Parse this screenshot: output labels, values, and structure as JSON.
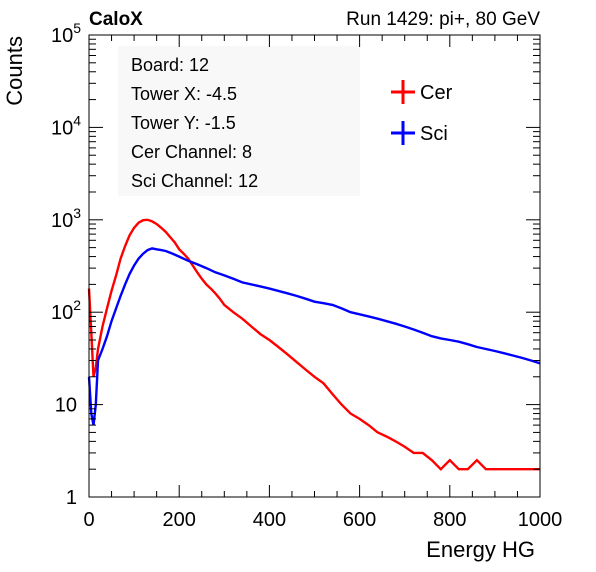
{
  "header": {
    "experiment": "CaloX",
    "run_info": "Run 1429: pi+, 80 GeV"
  },
  "info_box": {
    "lines": [
      "Board: 12",
      "Tower X: -4.5",
      "Tower Y: -1.5",
      "Cer Channel: 8",
      "Sci Channel: 12"
    ]
  },
  "colors": {
    "cer": "#ff0000",
    "sci": "#0000ff",
    "info_box_bg": "#f8f8f8"
  },
  "chart_data": {
    "type": "line",
    "xlabel": "Energy HG",
    "ylabel": "Counts",
    "xlim": [
      0,
      1000
    ],
    "ylim": [
      1,
      100000
    ],
    "yscale": "log",
    "grid": false,
    "legend_position": "top-right",
    "x_ticks": [
      "0",
      "200",
      "400",
      "600",
      "800",
      "1000"
    ],
    "y_ticks": [
      {
        "base": "1",
        "exp": ""
      },
      {
        "base": "10",
        "exp": ""
      },
      {
        "base": "10",
        "exp": "2"
      },
      {
        "base": "10",
        "exp": "3"
      },
      {
        "base": "10",
        "exp": "4"
      },
      {
        "base": "10",
        "exp": "5"
      }
    ],
    "series": [
      {
        "name": "Cer",
        "color": "#ff0000",
        "points": [
          [
            0,
            180
          ],
          [
            5,
            60
          ],
          [
            10,
            20
          ],
          [
            15,
            25
          ],
          [
            20,
            40
          ],
          [
            30,
            70
          ],
          [
            40,
            110
          ],
          [
            50,
            170
          ],
          [
            60,
            250
          ],
          [
            70,
            380
          ],
          [
            80,
            520
          ],
          [
            90,
            680
          ],
          [
            100,
            820
          ],
          [
            110,
            930
          ],
          [
            120,
            990
          ],
          [
            130,
            1000
          ],
          [
            140,
            960
          ],
          [
            150,
            900
          ],
          [
            160,
            820
          ],
          [
            170,
            740
          ],
          [
            180,
            650
          ],
          [
            190,
            570
          ],
          [
            200,
            480
          ],
          [
            210,
            430
          ],
          [
            220,
            380
          ],
          [
            230,
            320
          ],
          [
            240,
            270
          ],
          [
            250,
            230
          ],
          [
            260,
            200
          ],
          [
            270,
            180
          ],
          [
            280,
            160
          ],
          [
            290,
            140
          ],
          [
            300,
            120
          ],
          [
            320,
            100
          ],
          [
            340,
            85
          ],
          [
            360,
            70
          ],
          [
            380,
            58
          ],
          [
            400,
            50
          ],
          [
            420,
            42
          ],
          [
            440,
            35
          ],
          [
            460,
            29
          ],
          [
            480,
            24
          ],
          [
            500,
            20
          ],
          [
            520,
            17
          ],
          [
            540,
            13
          ],
          [
            560,
            10
          ],
          [
            580,
            8
          ],
          [
            600,
            7
          ],
          [
            620,
            6
          ],
          [
            640,
            5
          ],
          [
            660,
            4.5
          ],
          [
            680,
            4
          ],
          [
            700,
            3.5
          ],
          [
            720,
            3
          ],
          [
            740,
            3
          ],
          [
            760,
            2.5
          ],
          [
            780,
            2
          ],
          [
            800,
            2.5
          ],
          [
            820,
            2
          ],
          [
            840,
            2
          ],
          [
            860,
            2.5
          ],
          [
            880,
            2
          ],
          [
            900,
            2
          ],
          [
            920,
            2
          ],
          [
            940,
            2
          ],
          [
            960,
            2
          ],
          [
            980,
            2
          ],
          [
            1000,
            2
          ]
        ]
      },
      {
        "name": "Sci",
        "color": "#0000ff",
        "points": [
          [
            0,
            20
          ],
          [
            5,
            8
          ],
          [
            10,
            6
          ],
          [
            15,
            10
          ],
          [
            20,
            30
          ],
          [
            30,
            40
          ],
          [
            40,
            55
          ],
          [
            50,
            80
          ],
          [
            60,
            110
          ],
          [
            70,
            150
          ],
          [
            80,
            200
          ],
          [
            90,
            260
          ],
          [
            100,
            320
          ],
          [
            110,
            380
          ],
          [
            120,
            430
          ],
          [
            130,
            470
          ],
          [
            140,
            490
          ],
          [
            150,
            480
          ],
          [
            160,
            470
          ],
          [
            170,
            460
          ],
          [
            180,
            440
          ],
          [
            190,
            420
          ],
          [
            200,
            400
          ],
          [
            220,
            360
          ],
          [
            240,
            330
          ],
          [
            260,
            300
          ],
          [
            280,
            270
          ],
          [
            300,
            250
          ],
          [
            320,
            230
          ],
          [
            340,
            210
          ],
          [
            360,
            200
          ],
          [
            380,
            190
          ],
          [
            400,
            180
          ],
          [
            420,
            170
          ],
          [
            440,
            160
          ],
          [
            460,
            150
          ],
          [
            480,
            140
          ],
          [
            500,
            130
          ],
          [
            520,
            125
          ],
          [
            540,
            120
          ],
          [
            560,
            110
          ],
          [
            580,
            100
          ],
          [
            600,
            95
          ],
          [
            620,
            90
          ],
          [
            640,
            85
          ],
          [
            660,
            80
          ],
          [
            680,
            75
          ],
          [
            700,
            70
          ],
          [
            720,
            65
          ],
          [
            740,
            60
          ],
          [
            760,
            55
          ],
          [
            780,
            52
          ],
          [
            800,
            50
          ],
          [
            820,
            48
          ],
          [
            840,
            45
          ],
          [
            860,
            42
          ],
          [
            880,
            40
          ],
          [
            900,
            38
          ],
          [
            920,
            36
          ],
          [
            940,
            34
          ],
          [
            960,
            32
          ],
          [
            980,
            30
          ],
          [
            1000,
            28
          ]
        ]
      }
    ]
  }
}
